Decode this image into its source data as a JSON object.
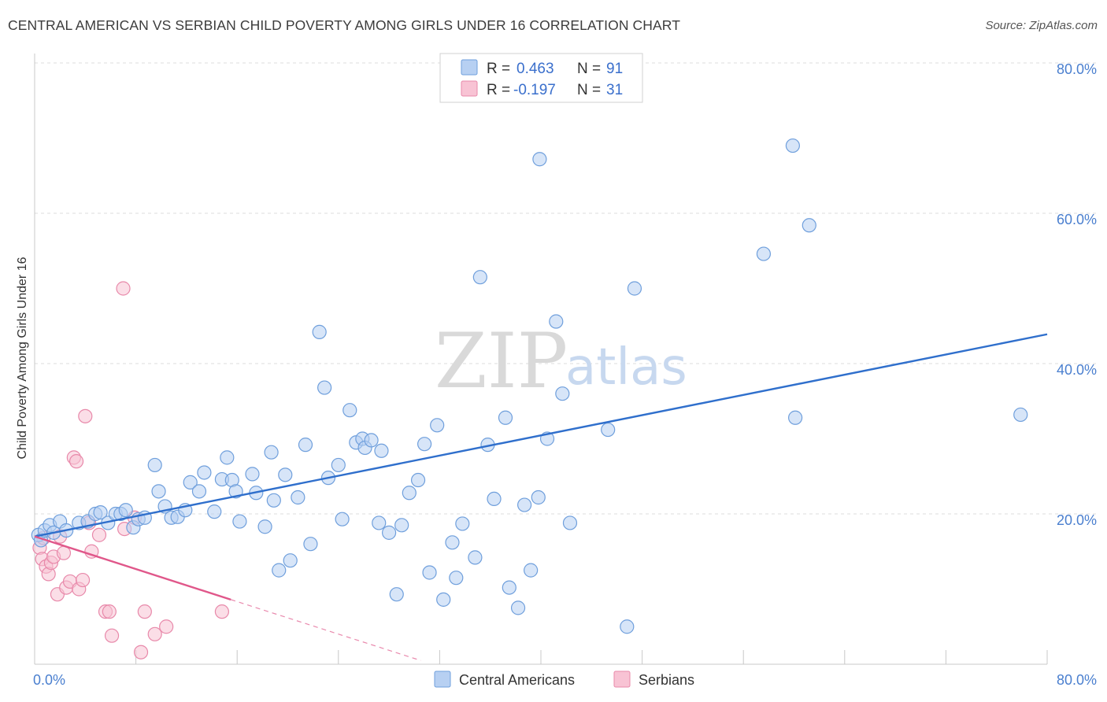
{
  "title": "CENTRAL AMERICAN VS SERBIAN CHILD POVERTY AMONG GIRLS UNDER 16 CORRELATION CHART",
  "source": "Source: ZipAtlas.com",
  "watermark": {
    "zip": "ZIP",
    "atlas": "atlas"
  },
  "colors": {
    "blue_fill": "#b7d0f2",
    "blue_stroke": "#6f9fdc",
    "blue_line": "#2f6fcc",
    "pink_fill": "#f8c3d4",
    "pink_stroke": "#e889aa",
    "pink_line": "#e0578a",
    "grid": "#dcdcdc",
    "axis_text": "#4a7fcf"
  },
  "legend": {
    "rows": [
      {
        "r_label": "R =",
        "r_value": "0.463",
        "n_label": "N =",
        "n_value": "91"
      },
      {
        "r_label": "R =",
        "r_value": "-0.197",
        "n_label": "N =",
        "n_value": "31"
      }
    ]
  },
  "bottom_legend": [
    "Central Americans",
    "Serbians"
  ],
  "chart_data": {
    "type": "scatter",
    "title": "CENTRAL AMERICAN VS SERBIAN CHILD POVERTY AMONG GIRLS UNDER 16 CORRELATION CHART",
    "xlabel": "",
    "ylabel": "Child Poverty Among Girls Under 16",
    "xlim": [
      0,
      80
    ],
    "ylim": [
      0,
      80
    ],
    "x_tick_labels": [
      "0.0%",
      "80.0%"
    ],
    "y_tick_labels": [
      "20.0%",
      "40.0%",
      "60.0%",
      "80.0%"
    ],
    "y_ticks": [
      20,
      40,
      60,
      80
    ],
    "grid": true,
    "legend_position": "top-center",
    "series": [
      {
        "name": "Central Americans",
        "color": "#6f9fdc",
        "trend": {
          "x": [
            0,
            80
          ],
          "y": [
            17.0,
            43.9
          ]
        },
        "points": [
          [
            0.3,
            17.2
          ],
          [
            0.5,
            16.5
          ],
          [
            0.8,
            17.8
          ],
          [
            1.2,
            18.5
          ],
          [
            1.5,
            17.5
          ],
          [
            2.0,
            19.0
          ],
          [
            2.5,
            17.8
          ],
          [
            3.5,
            18.8
          ],
          [
            4.2,
            19.0
          ],
          [
            4.8,
            20.0
          ],
          [
            5.2,
            20.2
          ],
          [
            5.8,
            18.8
          ],
          [
            6.4,
            20.0
          ],
          [
            6.8,
            20.0
          ],
          [
            7.2,
            20.5
          ],
          [
            7.8,
            18.2
          ],
          [
            8.2,
            19.3
          ],
          [
            8.7,
            19.5
          ],
          [
            9.5,
            26.5
          ],
          [
            9.8,
            23.0
          ],
          [
            10.3,
            21.0
          ],
          [
            10.8,
            19.5
          ],
          [
            11.3,
            19.6
          ],
          [
            11.9,
            20.5
          ],
          [
            12.3,
            24.2
          ],
          [
            13.0,
            23.0
          ],
          [
            13.4,
            25.5
          ],
          [
            14.2,
            20.3
          ],
          [
            14.8,
            24.6
          ],
          [
            15.2,
            27.5
          ],
          [
            15.6,
            24.5
          ],
          [
            15.9,
            23.0
          ],
          [
            16.2,
            19.0
          ],
          [
            17.2,
            25.3
          ],
          [
            17.5,
            22.8
          ],
          [
            18.2,
            18.3
          ],
          [
            18.7,
            28.2
          ],
          [
            18.9,
            21.8
          ],
          [
            19.3,
            12.5
          ],
          [
            19.8,
            25.2
          ],
          [
            20.2,
            13.8
          ],
          [
            20.8,
            22.2
          ],
          [
            21.4,
            29.2
          ],
          [
            21.8,
            16.0
          ],
          [
            22.5,
            44.2
          ],
          [
            22.9,
            36.8
          ],
          [
            23.2,
            24.8
          ],
          [
            24.0,
            26.5
          ],
          [
            24.3,
            19.3
          ],
          [
            24.9,
            33.8
          ],
          [
            25.4,
            29.5
          ],
          [
            25.9,
            30.0
          ],
          [
            26.1,
            28.8
          ],
          [
            26.6,
            29.8
          ],
          [
            27.2,
            18.8
          ],
          [
            27.4,
            28.4
          ],
          [
            28.0,
            17.5
          ],
          [
            28.6,
            9.3
          ],
          [
            29.0,
            18.5
          ],
          [
            29.6,
            22.8
          ],
          [
            30.3,
            24.5
          ],
          [
            30.8,
            29.3
          ],
          [
            31.2,
            12.2
          ],
          [
            31.8,
            31.8
          ],
          [
            32.3,
            8.6
          ],
          [
            33.0,
            16.2
          ],
          [
            33.3,
            11.5
          ],
          [
            33.8,
            18.7
          ],
          [
            34.8,
            14.2
          ],
          [
            35.2,
            51.5
          ],
          [
            35.8,
            29.2
          ],
          [
            36.3,
            22.0
          ],
          [
            37.2,
            32.8
          ],
          [
            37.5,
            10.2
          ],
          [
            38.2,
            7.5
          ],
          [
            38.7,
            21.2
          ],
          [
            39.2,
            12.5
          ],
          [
            39.8,
            22.2
          ],
          [
            39.9,
            67.2
          ],
          [
            40.5,
            30.0
          ],
          [
            41.2,
            45.6
          ],
          [
            41.7,
            36.0
          ],
          [
            42.3,
            18.8
          ],
          [
            45.3,
            31.2
          ],
          [
            46.8,
            5.0
          ],
          [
            47.4,
            50.0
          ],
          [
            57.6,
            54.6
          ],
          [
            59.9,
            69.0
          ],
          [
            60.1,
            32.8
          ],
          [
            61.2,
            58.4
          ],
          [
            77.9,
            33.2
          ]
        ]
      },
      {
        "name": "Serbians",
        "color": "#e889aa",
        "trend": {
          "x": [
            0,
            15.5
          ],
          "y": [
            17.0,
            8.6
          ]
        },
        "trend_dashed": {
          "x": [
            15.5,
            30.5
          ],
          "y": [
            8.6,
            0.5
          ]
        },
        "points": [
          [
            0.4,
            15.5
          ],
          [
            0.6,
            14.0
          ],
          [
            0.9,
            13.0
          ],
          [
            1.1,
            12.0
          ],
          [
            1.3,
            13.5
          ],
          [
            1.5,
            14.3
          ],
          [
            1.8,
            9.3
          ],
          [
            2.0,
            17.0
          ],
          [
            2.3,
            14.8
          ],
          [
            2.5,
            10.2
          ],
          [
            2.8,
            11.0
          ],
          [
            3.1,
            27.5
          ],
          [
            3.3,
            27.0
          ],
          [
            3.5,
            10.0
          ],
          [
            3.8,
            11.2
          ],
          [
            4.0,
            33.0
          ],
          [
            4.3,
            18.8
          ],
          [
            4.5,
            15.0
          ],
          [
            5.1,
            17.2
          ],
          [
            5.6,
            7.0
          ],
          [
            5.9,
            7.0
          ],
          [
            6.1,
            3.8
          ],
          [
            7.0,
            50.0
          ],
          [
            7.1,
            18.0
          ],
          [
            7.9,
            19.5
          ],
          [
            8.4,
            1.6
          ],
          [
            8.7,
            7.0
          ],
          [
            9.5,
            4.0
          ],
          [
            10.4,
            5.0
          ],
          [
            14.8,
            7.0
          ],
          [
            0.7,
            16.8
          ]
        ]
      }
    ]
  }
}
